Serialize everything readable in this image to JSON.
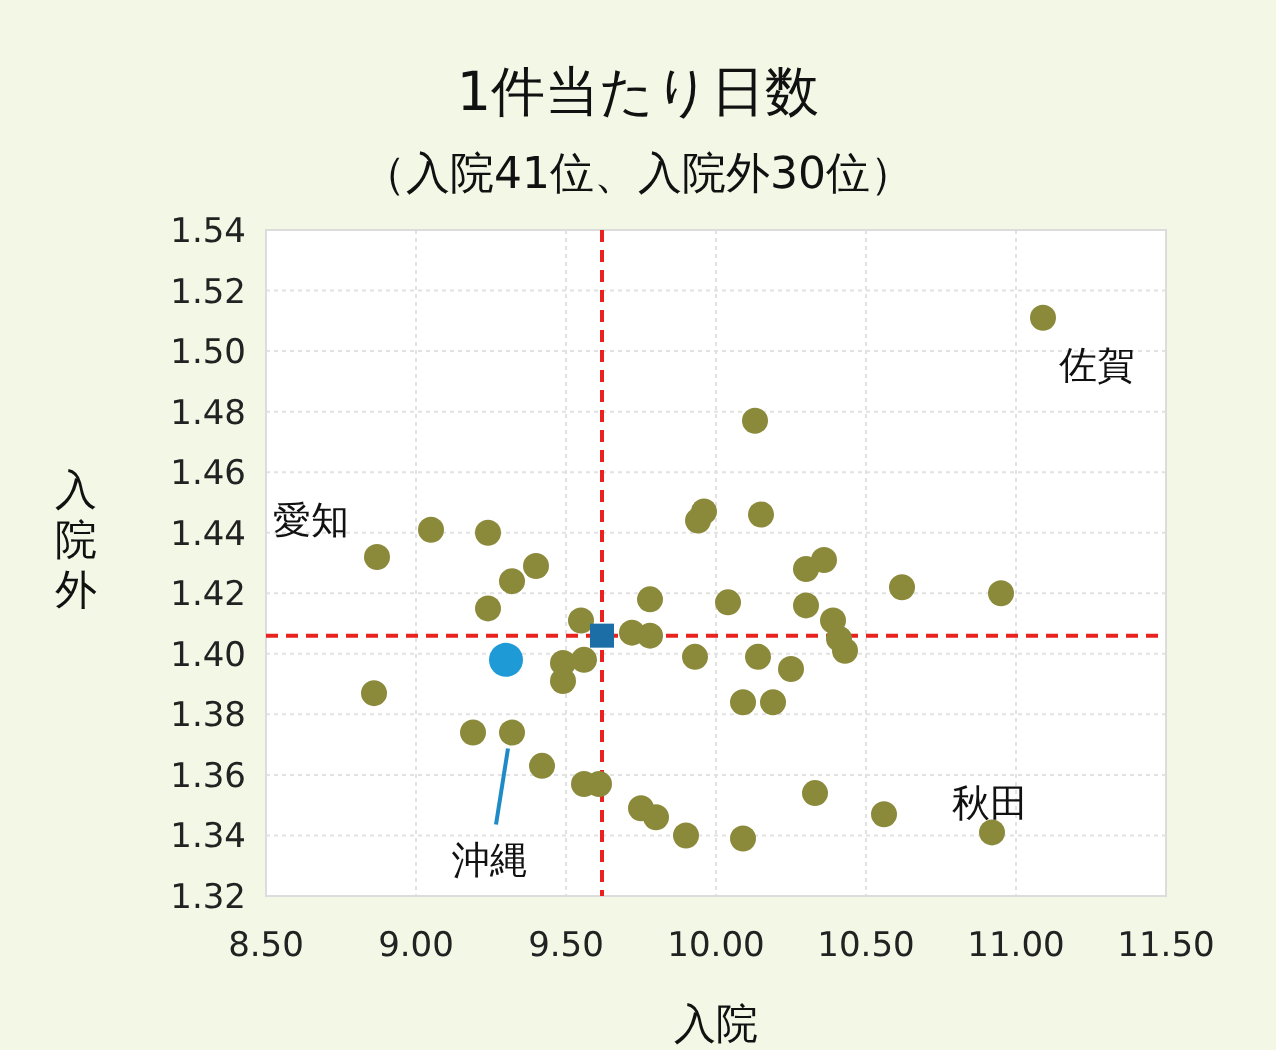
{
  "chart_data": {
    "type": "scatter",
    "title": "1件当たり日数",
    "subtitle": "（入院41位、入院外30位）",
    "xlabel": "入院",
    "ylabel": "入院外",
    "xlim": [
      8.5,
      11.5
    ],
    "xticks": [
      {
        "value": 8.5,
        "label": "8.50"
      },
      {
        "value": 9,
        "label": "9.00"
      },
      {
        "value": 9.5,
        "label": "9.50"
      },
      {
        "value": 10,
        "label": "10.00"
      },
      {
        "value": 10.5,
        "label": "10.50"
      },
      {
        "value": 11,
        "label": "11.00"
      },
      {
        "value": 11.5,
        "label": "11.50"
      }
    ],
    "ylim": [
      1.32,
      1.54
    ],
    "yticks": [
      {
        "value": 1.32,
        "label": "1.32"
      },
      {
        "value": 1.34,
        "label": "1.34"
      },
      {
        "value": 1.36,
        "label": "1.36"
      },
      {
        "value": 1.38,
        "label": "1.38"
      },
      {
        "value": 1.4,
        "label": "1.40"
      },
      {
        "value": 1.42,
        "label": "1.42"
      },
      {
        "value": 1.44,
        "label": "1.44"
      },
      {
        "value": 1.46,
        "label": "1.46"
      },
      {
        "value": 1.48,
        "label": "1.48"
      },
      {
        "value": 1.5,
        "label": "1.50"
      },
      {
        "value": 1.52,
        "label": "1.52"
      },
      {
        "value": 1.54,
        "label": "1.54"
      }
    ],
    "grid": true,
    "series": [
      {
        "color": "#8b8a3b",
        "marker": "circle",
        "x": [
          8.87,
          9.05,
          9.24,
          9.4,
          9.32,
          9.24,
          9.55,
          9.49,
          9.56,
          9.49,
          8.86,
          9.19,
          9.32,
          9.42,
          9.56,
          9.61,
          9.75,
          9.8,
          9.9,
          9.72,
          9.78,
          9.78,
          9.93,
          9.94,
          9.96,
          10.04,
          10.09,
          10.19,
          11.09,
          10.13,
          10.15,
          10.3,
          10.36,
          10.62,
          10.95,
          10.3,
          10.39,
          10.41,
          10.43,
          10.14,
          10.25,
          10.33,
          10.56,
          10.92,
          10.09
        ],
        "values": [
          1.432,
          1.441,
          1.44,
          1.429,
          1.424,
          1.415,
          1.411,
          1.397,
          1.398,
          1.391,
          1.387,
          1.374,
          1.374,
          1.363,
          1.357,
          1.357,
          1.349,
          1.346,
          1.34,
          1.407,
          1.406,
          1.418,
          1.399,
          1.444,
          1.447,
          1.417,
          1.384,
          1.384,
          1.511,
          1.477,
          1.446,
          1.428,
          1.431,
          1.422,
          1.42,
          1.416,
          1.411,
          1.405,
          1.401,
          1.399,
          1.395,
          1.354,
          1.347,
          1.341,
          1.339
        ]
      },
      {
        "color": "#1e9ad6",
        "marker": "circle",
        "x": [
          9.3
        ],
        "values": [
          1.398
        ]
      },
      {
        "color": "#1b6ea6",
        "marker": "square",
        "x": [
          9.62
        ],
        "values": [
          1.406
        ]
      }
    ],
    "ref_lines": [
      {
        "axis": "x",
        "value": 9.62,
        "color": "#e8231f",
        "line_style": "dashed"
      },
      {
        "axis": "y",
        "value": 1.406,
        "color": "#e8231f",
        "line_style": "dashed"
      }
    ],
    "annotations": [
      {
        "text": "愛知",
        "x": 8.87,
        "y": 1.432
      },
      {
        "text": "佐賀",
        "x": 11.09,
        "y": 1.511
      },
      {
        "text": "秋田",
        "x": 10.92,
        "y": 1.341
      },
      {
        "text": "沖縄",
        "x": 9.32,
        "y": 1.374
      }
    ]
  }
}
